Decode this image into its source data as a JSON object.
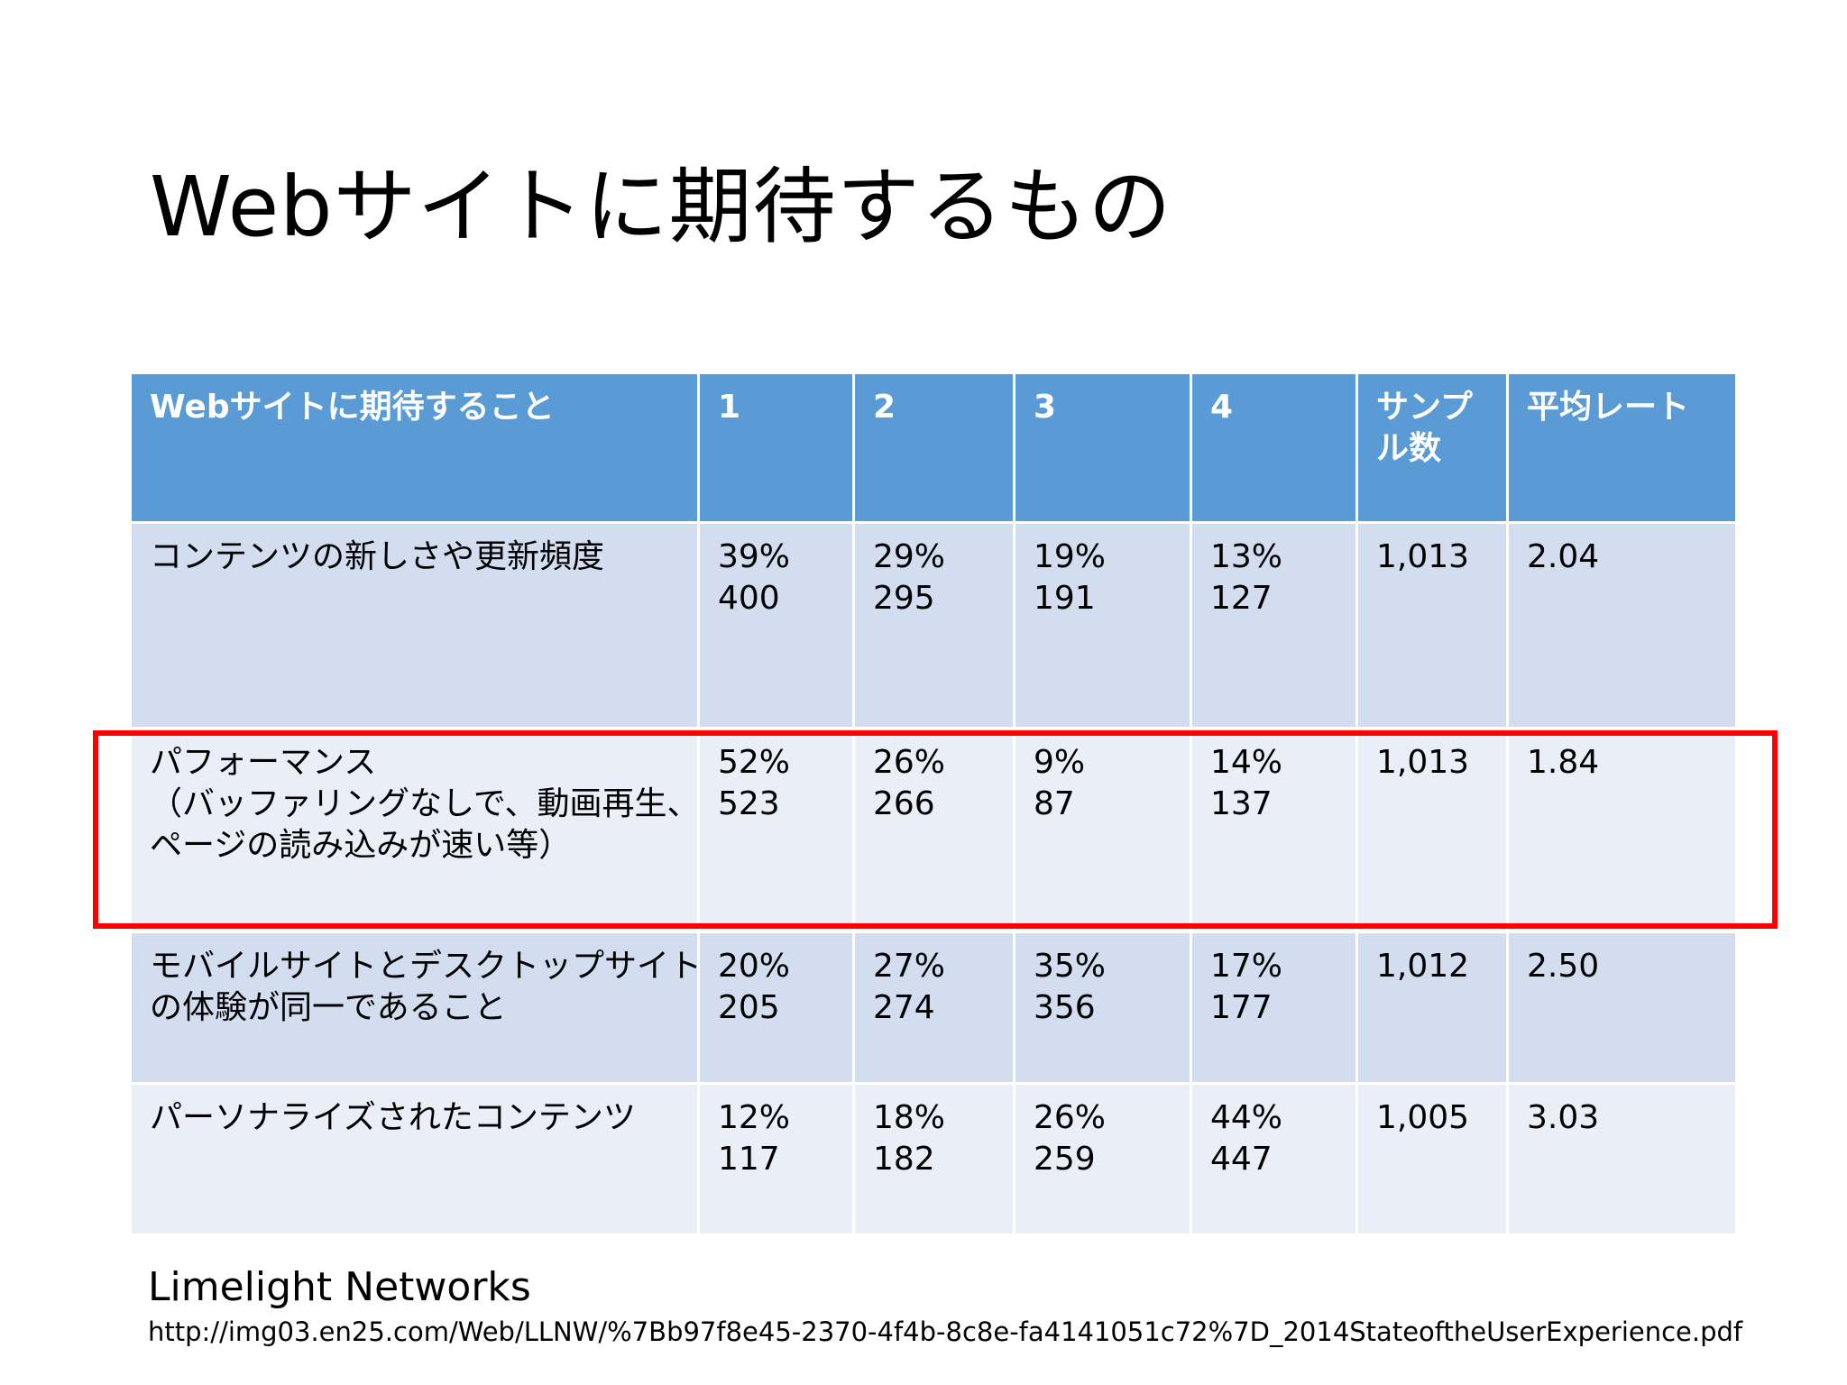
{
  "title": "Webサイトに期待するもの",
  "table": {
    "headers": [
      "Webサイトに期待すること",
      "1",
      "2",
      "3",
      "4",
      "サンプル数",
      "平均レート"
    ],
    "header_sample_lines": [
      "サンプ",
      "ル数"
    ],
    "rows": [
      {
        "item_lines": [
          "コンテンツの新しさや更新頻度"
        ],
        "c1": {
          "pct": "39%",
          "count": "400"
        },
        "c2": {
          "pct": "29%",
          "count": "295"
        },
        "c3": {
          "pct": "19%",
          "count": "191"
        },
        "c4": {
          "pct": "13%",
          "count": "127"
        },
        "samples": "1,013",
        "avg": "2.04"
      },
      {
        "item_lines": [
          "パフォーマンス",
          "（バッファリングなしで、動画再生、",
          "ページの読み込みが速い等）"
        ],
        "c1": {
          "pct": "52%",
          "count": "523"
        },
        "c2": {
          "pct": "26%",
          "count": "266"
        },
        "c3": {
          "pct": "9%",
          "count": "87"
        },
        "c4": {
          "pct": "14%",
          "count": "137"
        },
        "samples": "1,013",
        "avg": "1.84"
      },
      {
        "item_lines": [
          "モバイルサイトとデスクトップサイト",
          "の体験が同一であること"
        ],
        "c1": {
          "pct": "20%",
          "count": "205"
        },
        "c2": {
          "pct": "27%",
          "count": "274"
        },
        "c3": {
          "pct": "35%",
          "count": "356"
        },
        "c4": {
          "pct": "17%",
          "count": "177"
        },
        "samples": "1,012",
        "avg": "2.50"
      },
      {
        "item_lines": [
          "パーソナライズされたコンテンツ"
        ],
        "c1": {
          "pct": "12%",
          "count": "117"
        },
        "c2": {
          "pct": "18%",
          "count": "182"
        },
        "c3": {
          "pct": "26%",
          "count": "259"
        },
        "c4": {
          "pct": "44%",
          "count": "447"
        },
        "samples": "1,005",
        "avg": "3.03"
      }
    ]
  },
  "highlighted_row": "パフォーマンス",
  "highlight_color": "#ff0000",
  "header_color": "#5b9bd5",
  "row_dark_color": "#d2deef",
  "row_light_color": "#eaeff7",
  "source": {
    "name": "Limelight Networks",
    "url": "http://img03.en25.com/Web/LLNW/%7Bb97f8e45-2370-4f4b-8c8e-fa4141051c72%7D_2014StateoftheUserExperience.pdf"
  }
}
